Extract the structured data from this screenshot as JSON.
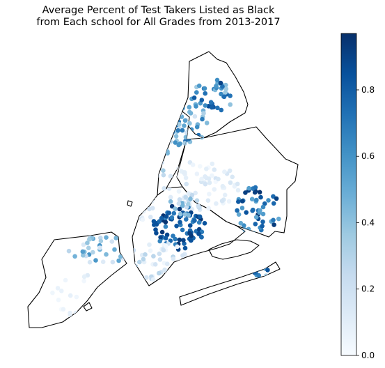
{
  "chart_data": {
    "type": "scatter",
    "title_lines": [
      "Average Percent of Test Takers Listed as Black",
      "from Each school for All Grades from 2013-2017"
    ],
    "xlabel": "",
    "ylabel": "",
    "axes_visible": false,
    "background_map": "NYC borough outlines",
    "colormap": "Blues",
    "colormap_stops": [
      "#f7fbff",
      "#deebf7",
      "#c6dbef",
      "#9ecae1",
      "#6baed6",
      "#4292c6",
      "#2171b5",
      "#08519c",
      "#08306b"
    ],
    "colorbar": {
      "range": [
        0.0,
        0.97
      ],
      "ticks": [
        0.0,
        0.2,
        0.4,
        0.6,
        0.8
      ],
      "tick_labels": [
        "0.0",
        "0.2",
        "0.4",
        "0.6",
        "0.8"
      ],
      "placement": "right"
    },
    "clusters": [
      {
        "region": "Bronx north",
        "center": [
          0.675,
          0.17
        ],
        "radius": [
          0.085,
          0.06
        ],
        "count": 40,
        "value_range": [
          0.35,
          0.9
        ]
      },
      {
        "region": "Bronx south",
        "center": [
          0.58,
          0.27
        ],
        "radius": [
          0.09,
          0.08
        ],
        "count": 55,
        "value_range": [
          0.15,
          0.75
        ]
      },
      {
        "region": "Upper Manhattan",
        "center": [
          0.47,
          0.38
        ],
        "radius": [
          0.05,
          0.11
        ],
        "count": 35,
        "value_range": [
          0.1,
          0.55
        ]
      },
      {
        "region": "Lower Manhattan",
        "center": [
          0.43,
          0.56
        ],
        "radius": [
          0.04,
          0.08
        ],
        "count": 20,
        "value_range": [
          0.02,
          0.2
        ]
      },
      {
        "region": "Queens west",
        "center": [
          0.64,
          0.49
        ],
        "radius": [
          0.14,
          0.09
        ],
        "count": 70,
        "value_range": [
          0.02,
          0.18
        ]
      },
      {
        "region": "Queens southeast",
        "center": [
          0.845,
          0.58
        ],
        "radius": [
          0.09,
          0.09
        ],
        "count": 50,
        "value_range": [
          0.5,
          0.97
        ]
      },
      {
        "region": "Brooklyn central",
        "center": [
          0.555,
          0.64
        ],
        "radius": [
          0.1,
          0.08
        ],
        "count": 80,
        "value_range": [
          0.65,
          0.97
        ]
      },
      {
        "region": "Brooklyn south",
        "center": [
          0.48,
          0.76
        ],
        "radius": [
          0.11,
          0.07
        ],
        "count": 50,
        "value_range": [
          0.02,
          0.3
        ]
      },
      {
        "region": "Brooklyn north",
        "center": [
          0.58,
          0.56
        ],
        "radius": [
          0.06,
          0.04
        ],
        "count": 20,
        "value_range": [
          0.2,
          0.5
        ]
      },
      {
        "region": "Rockaways",
        "center": [
          0.83,
          0.8
        ],
        "radius": [
          0.08,
          0.02
        ],
        "count": 12,
        "value_range": [
          0.3,
          0.9
        ]
      },
      {
        "region": "Staten Island north",
        "center": [
          0.27,
          0.72
        ],
        "radius": [
          0.12,
          0.05
        ],
        "count": 35,
        "value_range": [
          0.1,
          0.6
        ]
      },
      {
        "region": "Staten Island south",
        "center": [
          0.18,
          0.88
        ],
        "radius": [
          0.09,
          0.08
        ],
        "count": 20,
        "value_range": [
          0.0,
          0.12
        ]
      }
    ]
  }
}
